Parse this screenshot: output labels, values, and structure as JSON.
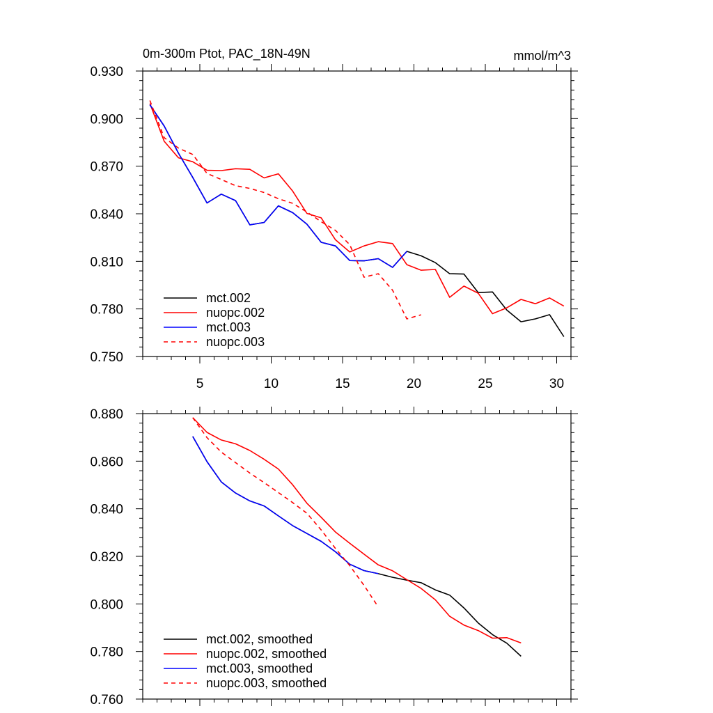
{
  "chart_data": [
    {
      "type": "line",
      "title": "0m-300m Ptot, PAC_18N-49N",
      "units": "mmol/m^3",
      "xlim": [
        1,
        31
      ],
      "ylim": [
        0.75,
        0.93
      ],
      "xticks": [
        5,
        10,
        15,
        20,
        25,
        30
      ],
      "xtick_labels": [
        "5",
        "10",
        "15",
        "20",
        "25",
        "30"
      ],
      "yticks": [
        0.75,
        0.78,
        0.81,
        0.84,
        0.87,
        0.9,
        0.93
      ],
      "ytick_labels": [
        "0.750",
        "0.780",
        "0.810",
        "0.840",
        "0.870",
        "0.900",
        "0.930"
      ],
      "legend_position": "lower-left",
      "series": [
        {
          "name": "mct.002",
          "color": "#000000",
          "dash": "solid",
          "x": [
            1.5,
            2.5,
            3.5,
            4.5,
            5.5,
            6.5,
            7.5,
            8.5,
            9.5,
            10.5,
            11.5,
            12.5,
            13.5,
            14.5,
            15.5,
            16.5,
            17.5,
            18.5,
            19.5,
            20.5,
            21.5,
            22.5,
            23.5,
            24.5,
            25.5,
            26.5,
            27.5,
            28.5,
            29.5,
            30.5
          ],
          "y": [
            0.9087,
            0.8953,
            0.8782,
            0.8629,
            0.8468,
            0.8524,
            0.8483,
            0.833,
            0.8345,
            0.845,
            0.8407,
            0.8334,
            0.822,
            0.8197,
            0.8105,
            0.8103,
            0.8117,
            0.8062,
            0.8163,
            0.8135,
            0.8092,
            0.8022,
            0.802,
            0.7903,
            0.7907,
            0.7793,
            0.7719,
            0.7737,
            0.7764,
            0.7625
          ]
        },
        {
          "name": "nuopc.002",
          "color": "#ff0000",
          "dash": "solid",
          "x": [
            1.5,
            2.5,
            3.5,
            4.5,
            5.5,
            6.5,
            7.5,
            8.5,
            9.5,
            10.5,
            11.5,
            12.5,
            13.5,
            14.5,
            15.5,
            16.5,
            17.5,
            18.5,
            19.5,
            20.5,
            21.5,
            22.5,
            23.5,
            24.5,
            25.5,
            26.5,
            27.5,
            28.5,
            29.5,
            30.5
          ],
          "y": [
            0.9095,
            0.8857,
            0.8753,
            0.8728,
            0.8674,
            0.8672,
            0.8684,
            0.868,
            0.8626,
            0.8652,
            0.8543,
            0.8402,
            0.8374,
            0.8236,
            0.8159,
            0.8197,
            0.8224,
            0.8212,
            0.8079,
            0.8044,
            0.8049,
            0.7873,
            0.7944,
            0.7899,
            0.777,
            0.7807,
            0.786,
            0.7833,
            0.7869,
            0.7818
          ]
        },
        {
          "name": "mct.003",
          "color": "#0000ff",
          "dash": "solid",
          "x": [
            1.5,
            2.5,
            3.5,
            4.5,
            5.5,
            6.5,
            7.5,
            8.5,
            9.5,
            10.5,
            11.5,
            12.5,
            13.5,
            14.5,
            15.5,
            16.5,
            17.5,
            18.5,
            19.5
          ],
          "y": [
            0.9087,
            0.8953,
            0.8782,
            0.8629,
            0.8468,
            0.8524,
            0.8483,
            0.833,
            0.8345,
            0.845,
            0.8407,
            0.8334,
            0.822,
            0.8197,
            0.8105,
            0.8103,
            0.8117,
            0.8062,
            0.8163
          ]
        },
        {
          "name": "nuopc.003",
          "color": "#ff0000",
          "dash": "dashed",
          "x": [
            1.5,
            2.5,
            3.5,
            4.5,
            5.5,
            6.5,
            7.5,
            8.5,
            9.5,
            10.5,
            11.5,
            12.5,
            13.5,
            14.5,
            15.5,
            16.5,
            17.5,
            18.5,
            19.5,
            20.5
          ],
          "y": [
            0.9114,
            0.888,
            0.8814,
            0.8774,
            0.8654,
            0.8616,
            0.8577,
            0.856,
            0.8534,
            0.8495,
            0.8466,
            0.8411,
            0.835,
            0.8295,
            0.8205,
            0.8,
            0.8022,
            0.7918,
            0.7737,
            0.7763
          ]
        }
      ]
    },
    {
      "type": "line",
      "xlim": [
        1,
        31
      ],
      "ylim": [
        0.76,
        0.88
      ],
      "xticks": [
        5,
        10,
        15,
        20,
        25,
        30
      ],
      "yticks": [
        0.76,
        0.78,
        0.8,
        0.82,
        0.84,
        0.86,
        0.88
      ],
      "ytick_labels": [
        "0.760",
        "0.780",
        "0.800",
        "0.820",
        "0.840",
        "0.860",
        "0.880"
      ],
      "legend_position": "lower-left",
      "series": [
        {
          "name": "mct.002, smoothed",
          "color": "#000000",
          "dash": "solid",
          "x": [
            4.5,
            5.5,
            6.5,
            7.5,
            8.5,
            9.5,
            10.5,
            11.5,
            12.5,
            13.5,
            14.5,
            15.5,
            16.5,
            17.5,
            18.5,
            19.5,
            20.5,
            21.5,
            22.5,
            23.5,
            24.5,
            25.5,
            26.5,
            27.5
          ],
          "y": [
            0.8704,
            0.8598,
            0.8513,
            0.8466,
            0.8433,
            0.8412,
            0.837,
            0.8329,
            0.8296,
            0.8263,
            0.8219,
            0.8167,
            0.814,
            0.8127,
            0.8112,
            0.81,
            0.8089,
            0.8059,
            0.8037,
            0.7983,
            0.792,
            0.7871,
            0.7835,
            0.778
          ]
        },
        {
          "name": "nuopc.002, smoothed",
          "color": "#ff0000",
          "dash": "solid",
          "x": [
            4.5,
            5.5,
            6.5,
            7.5,
            8.5,
            9.5,
            10.5,
            11.5,
            12.5,
            13.5,
            14.5,
            15.5,
            16.5,
            17.5,
            18.5,
            19.5,
            20.5,
            21.5,
            22.5,
            23.5,
            24.5,
            25.5,
            26.5,
            27.5
          ],
          "y": [
            0.8783,
            0.8721,
            0.8689,
            0.8673,
            0.8645,
            0.8608,
            0.8567,
            0.8501,
            0.8423,
            0.8364,
            0.8302,
            0.8255,
            0.8209,
            0.8164,
            0.8139,
            0.8102,
            0.8065,
            0.8017,
            0.7948,
            0.7911,
            0.7888,
            0.7856,
            0.7858,
            0.7836
          ]
        },
        {
          "name": "mct.003, smoothed",
          "color": "#0000ff",
          "dash": "solid",
          "x": [
            4.5,
            5.5,
            6.5,
            7.5,
            8.5,
            9.5,
            10.5,
            11.5,
            12.5,
            13.5,
            14.5,
            15.5,
            16.5,
            17.5
          ],
          "y": [
            0.8704,
            0.8598,
            0.8513,
            0.8466,
            0.8433,
            0.8412,
            0.837,
            0.8329,
            0.8296,
            0.8263,
            0.8219,
            0.8167,
            0.814,
            0.8127
          ]
        },
        {
          "name": "nuopc.003, smoothed",
          "color": "#ff0000",
          "dash": "dashed",
          "x": [
            4.5,
            5.5,
            6.5,
            7.5,
            8.5,
            9.5,
            10.5,
            11.5,
            12.5,
            13.5,
            14.5,
            15.5,
            16.5,
            17.5
          ],
          "y": [
            0.8783,
            0.8699,
            0.8638,
            0.8594,
            0.855,
            0.851,
            0.8468,
            0.8426,
            0.8381,
            0.8311,
            0.8233,
            0.8161,
            0.8078,
            0.7987
          ]
        }
      ]
    }
  ]
}
